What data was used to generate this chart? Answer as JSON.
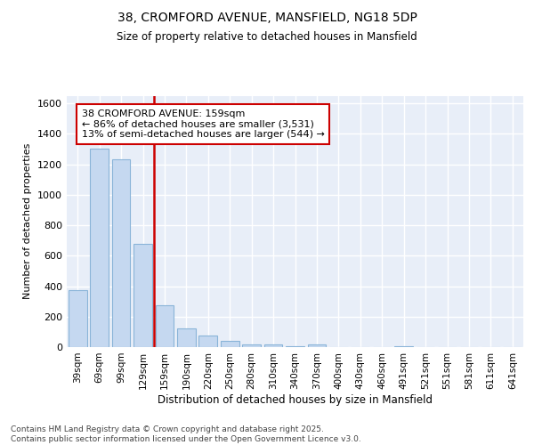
{
  "title1": "38, CROMFORD AVENUE, MANSFIELD, NG18 5DP",
  "title2": "Size of property relative to detached houses in Mansfield",
  "xlabel": "Distribution of detached houses by size in Mansfield",
  "ylabel": "Number of detached properties",
  "categories": [
    "39sqm",
    "69sqm",
    "99sqm",
    "129sqm",
    "159sqm",
    "190sqm",
    "220sqm",
    "250sqm",
    "280sqm",
    "310sqm",
    "340sqm",
    "370sqm",
    "400sqm",
    "430sqm",
    "460sqm",
    "491sqm",
    "521sqm",
    "551sqm",
    "581sqm",
    "611sqm",
    "641sqm"
  ],
  "values": [
    375,
    1300,
    1230,
    680,
    275,
    120,
    75,
    40,
    20,
    15,
    5,
    15,
    0,
    0,
    0,
    5,
    0,
    0,
    0,
    0,
    0
  ],
  "bar_color": "#c5d8f0",
  "bar_edge_color": "#8ab4d8",
  "vline_color": "#cc0000",
  "vline_index": 4,
  "annotation_text": "38 CROMFORD AVENUE: 159sqm\n← 86% of detached houses are smaller (3,531)\n13% of semi-detached houses are larger (544) →",
  "annotation_box_edgecolor": "#cc0000",
  "ylim": [
    0,
    1650
  ],
  "yticks": [
    0,
    200,
    400,
    600,
    800,
    1000,
    1200,
    1400,
    1600
  ],
  "fig_background": "#ffffff",
  "plot_background": "#e8eef8",
  "grid_color": "#ffffff",
  "footer": "Contains HM Land Registry data © Crown copyright and database right 2025.\nContains public sector information licensed under the Open Government Licence v3.0."
}
